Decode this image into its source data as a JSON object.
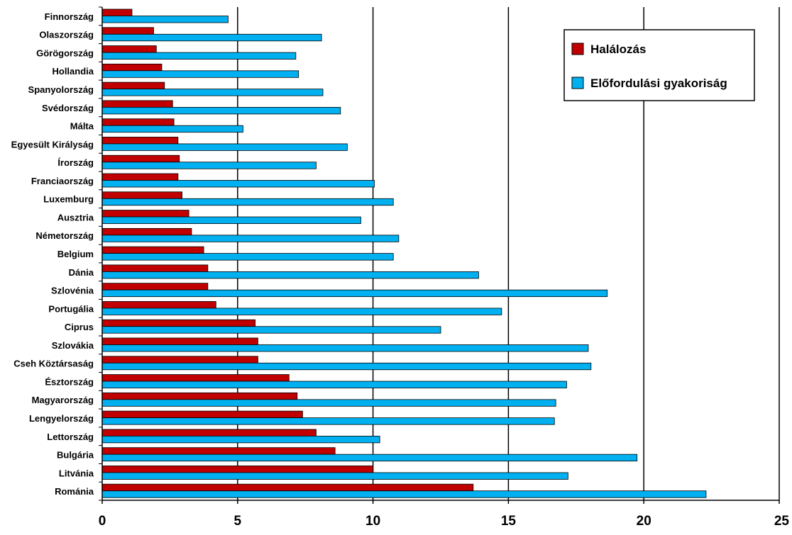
{
  "chart_data": {
    "type": "bar",
    "orientation": "horizontal",
    "categories": [
      "Finnország",
      "Olaszország",
      "Görögország",
      "Hollandia",
      "Spanyolország",
      "Svédország",
      "Málta",
      "Egyesült Királyság",
      "Írország",
      "Franciaország",
      "Luxemburg",
      "Ausztria",
      "Németország",
      "Belgium",
      "Dánia",
      "Szlovénia",
      "Portugália",
      "Ciprus",
      "Szlovákia",
      "Cseh Köztársaság",
      "Észtország",
      "Magyarország",
      "Lengyelország",
      "Lettország",
      "Bulgária",
      "Litvánia",
      "Románia"
    ],
    "series": [
      {
        "name": "Halálozás",
        "color": "#c00000",
        "values": [
          1.1,
          1.9,
          2.0,
          2.2,
          2.3,
          2.6,
          2.65,
          2.8,
          2.85,
          2.8,
          2.95,
          3.2,
          3.3,
          3.75,
          3.9,
          3.9,
          4.2,
          5.65,
          5.75,
          5.75,
          6.9,
          7.2,
          7.4,
          7.9,
          8.6,
          10.0,
          13.7
        ]
      },
      {
        "name": "Előfordulási gyakoriság",
        "color": "#00b0f0",
        "values": [
          4.65,
          8.1,
          7.15,
          7.25,
          8.15,
          8.8,
          5.2,
          9.05,
          7.9,
          10.05,
          10.75,
          9.55,
          10.95,
          10.75,
          13.9,
          18.65,
          14.75,
          12.5,
          17.95,
          18.05,
          17.15,
          16.75,
          16.7,
          10.25,
          19.75,
          17.2,
          22.3
        ]
      }
    ],
    "xlim": [
      0,
      25
    ],
    "xticks": [
      "0",
      "5",
      "10",
      "15",
      "20",
      "25"
    ],
    "xlabel": "",
    "ylabel": "",
    "grid": "vertical major lines",
    "legend_position": "top-right"
  }
}
